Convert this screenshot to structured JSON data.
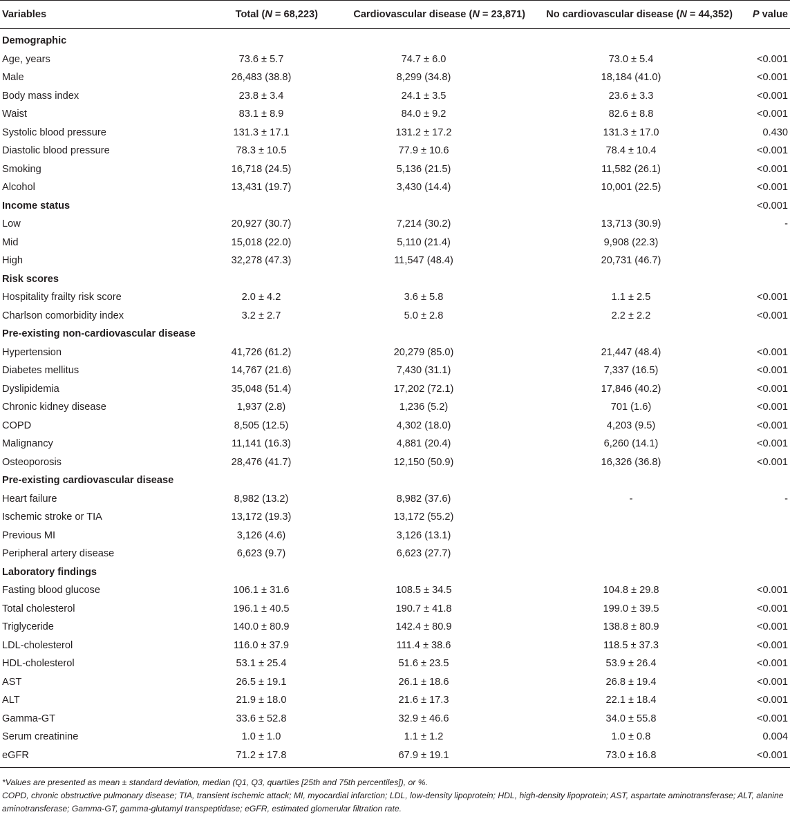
{
  "header": {
    "variables": "Variables",
    "total_pre": "Total (",
    "total_n": "N",
    "total_post": " = 68,223)",
    "cvd_pre": "Cardiovascular disease (",
    "cvd_n": "N",
    "cvd_post": " = 23,871)",
    "nocvd_pre": "No cardiovascular disease (",
    "nocvd_n": "N",
    "nocvd_post": " = 44,352)",
    "p_italic": "P",
    "p_rest": " value"
  },
  "rows": [
    {
      "kind": "section",
      "label": "Demographic",
      "total": "",
      "cvd": "",
      "nocvd": "",
      "p": ""
    },
    {
      "kind": "row",
      "label": "Age, years",
      "total": "73.6 ± 5.7",
      "cvd": "74.7 ± 6.0",
      "nocvd": "73.0 ± 5.4",
      "p": "<0.001"
    },
    {
      "kind": "row",
      "label": "Male",
      "total": "26,483 (38.8)",
      "cvd": "8,299 (34.8)",
      "nocvd": "18,184 (41.0)",
      "p": "<0.001"
    },
    {
      "kind": "row",
      "label": "Body mass index",
      "total": "23.8 ± 3.4",
      "cvd": "24.1 ± 3.5",
      "nocvd": "23.6 ± 3.3",
      "p": "<0.001"
    },
    {
      "kind": "row",
      "label": "Waist",
      "total": "83.1 ± 8.9",
      "cvd": "84.0 ± 9.2",
      "nocvd": "82.6 ± 8.8",
      "p": "<0.001"
    },
    {
      "kind": "row",
      "label": "Systolic blood pressure",
      "total": "131.3 ± 17.1",
      "cvd": "131.2 ± 17.2",
      "nocvd": "131.3 ± 17.0",
      "p": "0.430"
    },
    {
      "kind": "row",
      "label": "Diastolic blood pressure",
      "total": "78.3 ± 10.5",
      "cvd": "77.9 ± 10.6",
      "nocvd": "78.4 ± 10.4",
      "p": "<0.001"
    },
    {
      "kind": "row",
      "label": "Smoking",
      "total": "16,718 (24.5)",
      "cvd": "5,136 (21.5)",
      "nocvd": "11,582 (26.1)",
      "p": "<0.001"
    },
    {
      "kind": "row",
      "label": "Alcohol",
      "total": "13,431 (19.7)",
      "cvd": "3,430 (14.4)",
      "nocvd": "10,001 (22.5)",
      "p": "<0.001"
    },
    {
      "kind": "section",
      "label": "Income status",
      "total": "",
      "cvd": "",
      "nocvd": "",
      "p": "<0.001"
    },
    {
      "kind": "row",
      "label": "Low",
      "total": "20,927 (30.7)",
      "cvd": "7,214 (30.2)",
      "nocvd": "13,713 (30.9)",
      "p": "-"
    },
    {
      "kind": "row",
      "label": "Mid",
      "total": "15,018 (22.0)",
      "cvd": "5,110 (21.4)",
      "nocvd": "9,908 (22.3)",
      "p": ""
    },
    {
      "kind": "row",
      "label": "High",
      "total": "32,278 (47.3)",
      "cvd": "11,547 (48.4)",
      "nocvd": "20,731 (46.7)",
      "p": ""
    },
    {
      "kind": "section",
      "label": "Risk scores",
      "total": "",
      "cvd": "",
      "nocvd": "",
      "p": ""
    },
    {
      "kind": "row",
      "label": "Hospitality frailty risk score",
      "total": "2.0 ± 4.2",
      "cvd": "3.6 ± 5.8",
      "nocvd": "1.1 ± 2.5",
      "p": "<0.001"
    },
    {
      "kind": "row",
      "label": "Charlson comorbidity index",
      "total": "3.2 ± 2.7",
      "cvd": "5.0 ± 2.8",
      "nocvd": "2.2 ± 2.2",
      "p": "<0.001"
    },
    {
      "kind": "section",
      "label": "Pre-existing non-cardiovascular disease",
      "total": "",
      "cvd": "",
      "nocvd": "",
      "p": ""
    },
    {
      "kind": "row",
      "label": "Hypertension",
      "total": "41,726 (61.2)",
      "cvd": "20,279 (85.0)",
      "nocvd": "21,447 (48.4)",
      "p": "<0.001"
    },
    {
      "kind": "row",
      "label": "Diabetes mellitus",
      "total": "14,767 (21.6)",
      "cvd": "7,430 (31.1)",
      "nocvd": "7,337 (16.5)",
      "p": "<0.001"
    },
    {
      "kind": "row",
      "label": "Dyslipidemia",
      "total": "35,048 (51.4)",
      "cvd": "17,202 (72.1)",
      "nocvd": "17,846 (40.2)",
      "p": "<0.001"
    },
    {
      "kind": "row",
      "label": "Chronic kidney disease",
      "total": "1,937 (2.8)",
      "cvd": "1,236 (5.2)",
      "nocvd": "701 (1.6)",
      "p": "<0.001"
    },
    {
      "kind": "row",
      "label": "COPD",
      "total": "8,505 (12.5)",
      "cvd": "4,302 (18.0)",
      "nocvd": "4,203 (9.5)",
      "p": "<0.001"
    },
    {
      "kind": "row",
      "label": "Malignancy",
      "total": "11,141 (16.3)",
      "cvd": "4,881 (20.4)",
      "nocvd": "6,260 (14.1)",
      "p": "<0.001"
    },
    {
      "kind": "row",
      "label": "Osteoporosis",
      "total": "28,476 (41.7)",
      "cvd": "12,150 (50.9)",
      "nocvd": "16,326 (36.8)",
      "p": "<0.001"
    },
    {
      "kind": "section",
      "label": "Pre-existing cardiovascular disease",
      "total": "",
      "cvd": "",
      "nocvd": "",
      "p": ""
    },
    {
      "kind": "row",
      "label": "Heart failure",
      "total": "8,982 (13.2)",
      "cvd": "8,982 (37.6)",
      "nocvd": "-",
      "p": "-"
    },
    {
      "kind": "row",
      "label": "Ischemic stroke or TIA",
      "total": "13,172 (19.3)",
      "cvd": "13,172 (55.2)",
      "nocvd": "",
      "p": ""
    },
    {
      "kind": "row",
      "label": "Previous MI",
      "total": "3,126 (4.6)",
      "cvd": "3,126 (13.1)",
      "nocvd": "",
      "p": ""
    },
    {
      "kind": "row",
      "label": "Peripheral artery disease",
      "total": "6,623 (9.7)",
      "cvd": "6,623 (27.7)",
      "nocvd": "",
      "p": ""
    },
    {
      "kind": "section",
      "label": "Laboratory findings",
      "total": "",
      "cvd": "",
      "nocvd": "",
      "p": ""
    },
    {
      "kind": "row",
      "label": "Fasting blood glucose",
      "total": "106.1 ± 31.6",
      "cvd": "108.5 ± 34.5",
      "nocvd": "104.8 ± 29.8",
      "p": "<0.001"
    },
    {
      "kind": "row",
      "label": "Total cholesterol",
      "total": "196.1 ± 40.5",
      "cvd": "190.7 ± 41.8",
      "nocvd": "199.0 ± 39.5",
      "p": "<0.001"
    },
    {
      "kind": "row",
      "label": "Triglyceride",
      "total": "140.0 ± 80.9",
      "cvd": "142.4 ± 80.9",
      "nocvd": "138.8 ± 80.9",
      "p": "<0.001"
    },
    {
      "kind": "row",
      "label": "LDL-cholesterol",
      "total": "116.0 ± 37.9",
      "cvd": "111.4 ± 38.6",
      "nocvd": "118.5 ± 37.3",
      "p": "<0.001"
    },
    {
      "kind": "row",
      "label": "HDL-cholesterol",
      "total": "53.1 ± 25.4",
      "cvd": "51.6 ± 23.5",
      "nocvd": "53.9 ± 26.4",
      "p": "<0.001"
    },
    {
      "kind": "row",
      "label": "AST",
      "total": "26.5 ± 19.1",
      "cvd": "26.1 ± 18.6",
      "nocvd": "26.8 ± 19.4",
      "p": "<0.001"
    },
    {
      "kind": "row",
      "label": "ALT",
      "total": "21.9 ± 18.0",
      "cvd": "21.6 ± 17.3",
      "nocvd": "22.1 ± 18.4",
      "p": "<0.001"
    },
    {
      "kind": "row",
      "label": "Gamma-GT",
      "total": "33.6 ± 52.8",
      "cvd": "32.9 ± 46.6",
      "nocvd": "34.0 ± 55.8",
      "p": "<0.001"
    },
    {
      "kind": "row",
      "label": "Serum creatinine",
      "total": "1.0 ± 1.0",
      "cvd": "1.1 ± 1.2",
      "nocvd": "1.0 ± 0.8",
      "p": "0.004"
    },
    {
      "kind": "row",
      "label": "eGFR",
      "total": "71.2 ± 17.8",
      "cvd": "67.9 ± 19.1",
      "nocvd": "73.0 ± 16.8",
      "p": "<0.001"
    }
  ],
  "footnotes": {
    "line1": "*Values are presented as mean ± standard deviation, median (Q1, Q3, quartiles [25th and 75th percentiles]), or %.",
    "line2": "COPD, chronic obstructive pulmonary disease; TIA, transient ischemic attack; MI, myocardial infarction; LDL, low-density lipoprotein; HDL, high-density lipoprotein; AST, aspartate aminotransferase; ALT, alanine aminotransferase; Gamma-GT, gamma-glutamyl transpeptidase; eGFR, estimated glomerular filtration rate."
  }
}
